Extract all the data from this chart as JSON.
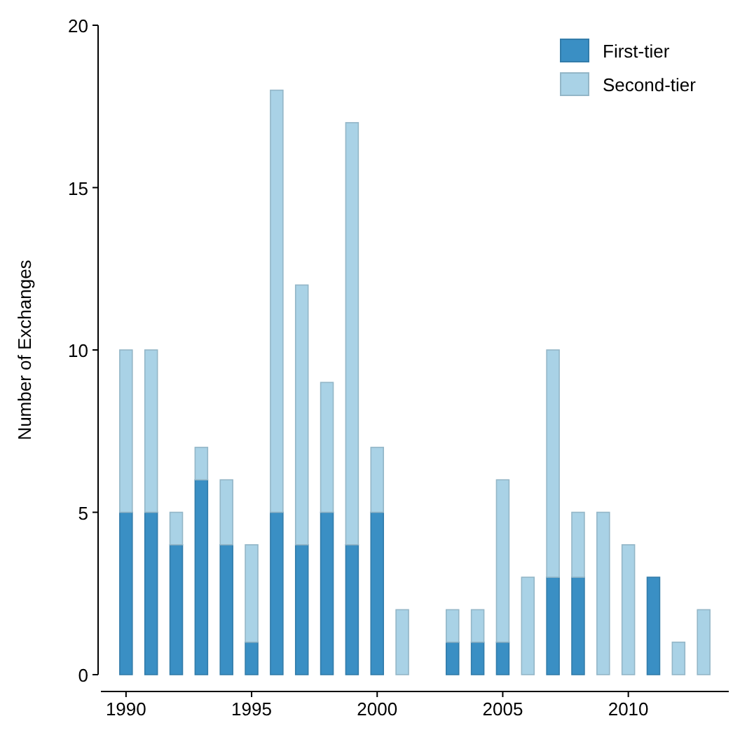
{
  "chart_data": {
    "type": "bar",
    "stacked": true,
    "ylabel": "Number of Exchanges",
    "x": [
      1990,
      1991,
      1992,
      1993,
      1994,
      1995,
      1996,
      1997,
      1998,
      1999,
      2000,
      2001,
      2002,
      2003,
      2004,
      2005,
      2006,
      2007,
      2008,
      2009,
      2010,
      2011,
      2012,
      2013
    ],
    "series": [
      {
        "name": "First-tier",
        "color": "#3a8fc4",
        "values": [
          5,
          5,
          4,
          6,
          4,
          1,
          5,
          4,
          5,
          4,
          5,
          0,
          0,
          1,
          1,
          1,
          0,
          3,
          3,
          0,
          0,
          3,
          0,
          0
        ]
      },
      {
        "name": "Second-tier",
        "color": "#a9d2e6",
        "values": [
          5,
          5,
          1,
          1,
          2,
          3,
          13,
          8,
          4,
          13,
          2,
          2,
          0,
          1,
          1,
          5,
          3,
          7,
          2,
          5,
          4,
          0,
          1,
          2
        ]
      }
    ],
    "xlim": [
      1989,
      2014
    ],
    "xticks": [
      1990,
      1995,
      2000,
      2005,
      2010
    ],
    "ylim": [
      0,
      20
    ],
    "yticks": [
      0,
      5,
      10,
      15,
      20
    ],
    "grid": false,
    "legend": "top right"
  }
}
